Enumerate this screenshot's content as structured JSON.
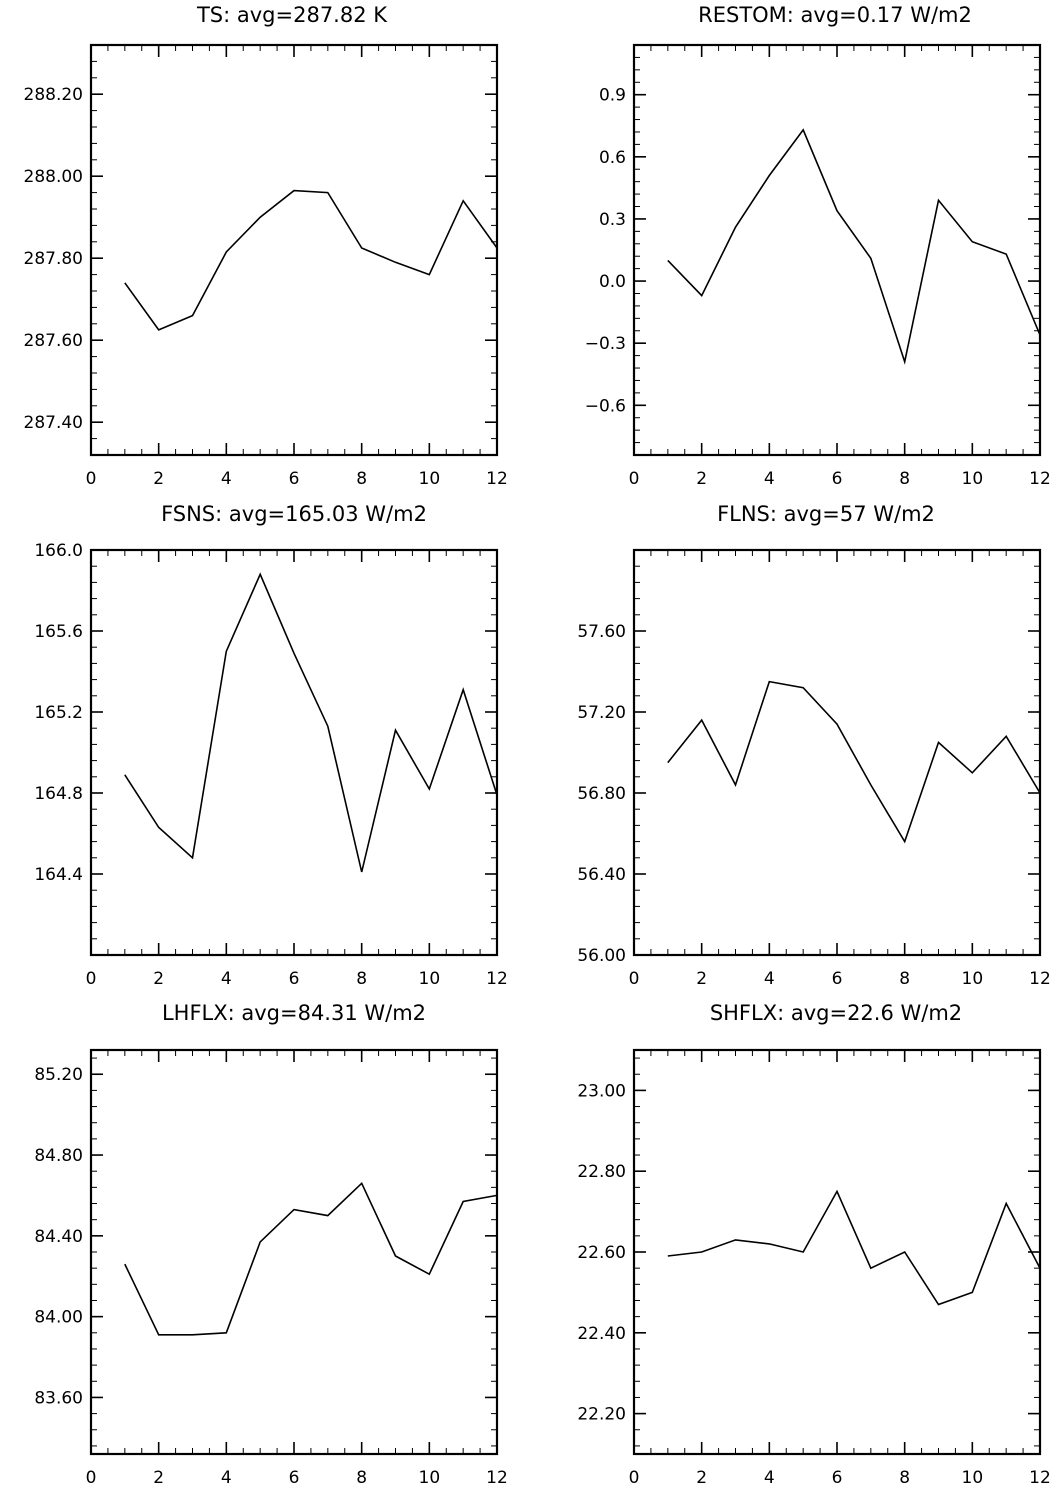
{
  "chart_data": [
    {
      "type": "line",
      "title": "TS: avg=287.82 K",
      "x": [
        1,
        2,
        3,
        4,
        5,
        6,
        7,
        8,
        9,
        10,
        11,
        12
      ],
      "values": [
        287.74,
        287.625,
        287.66,
        287.815,
        287.9,
        287.965,
        287.96,
        287.825,
        287.79,
        287.76,
        287.94,
        287.825
      ],
      "xlim": [
        0,
        12
      ],
      "ylim": [
        287.32,
        288.32
      ],
      "xticks": [
        0,
        2,
        4,
        6,
        8,
        10,
        12
      ],
      "xtick_labels": [
        "0",
        "2",
        "4",
        "6",
        "8",
        "10",
        "12"
      ],
      "yticks": [
        287.4,
        287.6,
        287.8,
        288.0,
        288.2
      ],
      "ytick_labels": [
        "287.40",
        "287.60",
        "287.80",
        "288.00",
        "288.20"
      ],
      "minor_step": 0.04,
      "grid": false
    },
    {
      "type": "line",
      "title": "RESTOM: avg=0.17 W/m2",
      "x": [
        1,
        2,
        3,
        4,
        5,
        6,
        7,
        8,
        9,
        10,
        11,
        12
      ],
      "values": [
        0.1,
        -0.07,
        0.26,
        0.51,
        0.73,
        0.34,
        0.11,
        -0.39,
        0.39,
        0.19,
        0.13,
        -0.26
      ],
      "xlim": [
        0,
        12
      ],
      "ylim": [
        -0.84,
        1.14
      ],
      "xticks": [
        0,
        2,
        4,
        6,
        8,
        10,
        12
      ],
      "xtick_labels": [
        "0",
        "2",
        "4",
        "6",
        "8",
        "10",
        "12"
      ],
      "yticks": [
        -0.6,
        -0.3,
        0.0,
        0.3,
        0.6,
        0.9
      ],
      "ytick_labels": [
        "−0.6",
        "−0.3",
        "0.0",
        "0.3",
        "0.6",
        "0.9"
      ],
      "minor_step": 0.06,
      "grid": false
    },
    {
      "type": "line",
      "title": "FSNS: avg=165.03 W/m2",
      "x": [
        1,
        2,
        3,
        4,
        5,
        6,
        7,
        8,
        9,
        10,
        11,
        12
      ],
      "values": [
        164.89,
        164.63,
        164.48,
        165.5,
        165.88,
        165.49,
        165.13,
        164.41,
        165.11,
        164.82,
        165.31,
        164.79
      ],
      "xlim": [
        0,
        12
      ],
      "ylim": [
        164.0,
        166.0
      ],
      "xticks": [
        0,
        2,
        4,
        6,
        8,
        10,
        12
      ],
      "xtick_labels": [
        "0",
        "2",
        "4",
        "6",
        "8",
        "10",
        "12"
      ],
      "yticks": [
        164.4,
        164.8,
        165.2,
        165.6,
        166.0
      ],
      "ytick_labels": [
        "164.4",
        "164.8",
        "165.2",
        "165.6",
        "166.0"
      ],
      "minor_step": 0.08,
      "grid": false
    },
    {
      "type": "line",
      "title": "FLNS: avg=57 W/m2",
      "x": [
        1,
        2,
        3,
        4,
        5,
        6,
        7,
        8,
        9,
        10,
        11,
        12
      ],
      "values": [
        56.95,
        57.16,
        56.84,
        57.35,
        57.32,
        57.14,
        56.84,
        56.56,
        57.05,
        56.9,
        57.08,
        56.8
      ],
      "xlim": [
        0,
        12
      ],
      "ylim": [
        56.0,
        58.0
      ],
      "xticks": [
        0,
        2,
        4,
        6,
        8,
        10,
        12
      ],
      "xtick_labels": [
        "0",
        "2",
        "4",
        "6",
        "8",
        "10",
        "12"
      ],
      "yticks": [
        56.0,
        56.4,
        56.8,
        57.2,
        57.6
      ],
      "ytick_labels": [
        "56.00",
        "56.40",
        "56.80",
        "57.20",
        "57.60"
      ],
      "minor_step": 0.08,
      "grid": false
    },
    {
      "type": "line",
      "title": "LHFLX: avg=84.31 W/m2",
      "x": [
        1,
        2,
        3,
        4,
        5,
        6,
        7,
        8,
        9,
        10,
        11,
        12
      ],
      "values": [
        84.26,
        83.91,
        83.91,
        83.92,
        84.37,
        84.53,
        84.5,
        84.66,
        84.3,
        84.21,
        84.57,
        84.6
      ],
      "xlim": [
        0,
        12
      ],
      "ylim": [
        83.32,
        85.32
      ],
      "xticks": [
        0,
        2,
        4,
        6,
        8,
        10,
        12
      ],
      "xtick_labels": [
        "0",
        "2",
        "4",
        "6",
        "8",
        "10",
        "12"
      ],
      "yticks": [
        83.6,
        84.0,
        84.4,
        84.8,
        85.2
      ],
      "ytick_labels": [
        "83.60",
        "84.00",
        "84.40",
        "84.80",
        "85.20"
      ],
      "minor_step": 0.08,
      "grid": false
    },
    {
      "type": "line",
      "title": "SHFLX: avg=22.6 W/m2",
      "x": [
        1,
        2,
        3,
        4,
        5,
        6,
        7,
        8,
        9,
        10,
        11,
        12
      ],
      "values": [
        22.59,
        22.6,
        22.63,
        22.62,
        22.6,
        22.75,
        22.56,
        22.6,
        22.47,
        22.5,
        22.72,
        22.56
      ],
      "xlim": [
        0,
        12
      ],
      "ylim": [
        22.1,
        23.1
      ],
      "xticks": [
        0,
        2,
        4,
        6,
        8,
        10,
        12
      ],
      "xtick_labels": [
        "0",
        "2",
        "4",
        "6",
        "8",
        "10",
        "12"
      ],
      "yticks": [
        22.2,
        22.4,
        22.6,
        22.8,
        23.0
      ],
      "ytick_labels": [
        "22.20",
        "22.40",
        "22.60",
        "22.80",
        "23.00"
      ],
      "minor_step": 0.04,
      "grid": false
    }
  ]
}
